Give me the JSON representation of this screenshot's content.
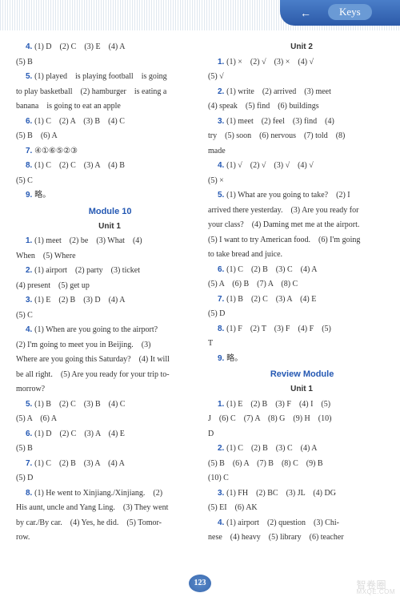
{
  "header": {
    "arrow": "←",
    "keys": "Keys"
  },
  "page_number": "123",
  "watermark": {
    "main": "智卷圈",
    "sub": "MXQE.COM"
  },
  "lines": [
    {
      "t": "ans",
      "n": "4.",
      "v": "(1) D　(2) C　(3) E　(4) A"
    },
    {
      "t": "cont",
      "v": "(5) B"
    },
    {
      "t": "ans",
      "n": "5.",
      "v": "(1) played　is playing football　is going"
    },
    {
      "t": "cont",
      "v": "to play basketball　(2) hamburger　is eating a"
    },
    {
      "t": "cont",
      "v": "banana　is going to eat an apple"
    },
    {
      "t": "ans",
      "n": "6.",
      "v": "(1) C　(2) A　(3) B　(4) C"
    },
    {
      "t": "cont",
      "v": "(5) B　(6) A"
    },
    {
      "t": "ans",
      "n": "7.",
      "v": "④①⑥⑤②③"
    },
    {
      "t": "ans",
      "n": "8.",
      "v": "(1) C　(2) C　(3) A　(4) B"
    },
    {
      "t": "cont",
      "v": "(5) C"
    },
    {
      "t": "ans",
      "n": "9.",
      "v": "略。"
    },
    {
      "t": "heading",
      "v": "Module 10"
    },
    {
      "t": "subheading",
      "v": "Unit 1"
    },
    {
      "t": "ans",
      "n": "1.",
      "v": "(1) meet　(2) be　(3) What　(4)"
    },
    {
      "t": "cont",
      "v": "When　(5) Where"
    },
    {
      "t": "ans",
      "n": "2.",
      "v": "(1) airport　(2) party　(3) ticket"
    },
    {
      "t": "cont",
      "v": "(4) present　(5) get up"
    },
    {
      "t": "ans",
      "n": "3.",
      "v": "(1) E　(2) B　(3) D　(4) A"
    },
    {
      "t": "cont",
      "v": "(5) C"
    },
    {
      "t": "ans",
      "n": "4.",
      "v": "(1) When are you going to the airport?"
    },
    {
      "t": "cont",
      "v": "(2) I'm going to meet you in Beijing.　(3)"
    },
    {
      "t": "cont",
      "v": "Where are you going this Saturday?　(4) It will"
    },
    {
      "t": "cont",
      "v": "be all right.　(5) Are you ready for your trip to-"
    },
    {
      "t": "cont",
      "v": "morrow?"
    },
    {
      "t": "ans",
      "n": "5.",
      "v": "(1) B　(2) C　(3) B　(4) C"
    },
    {
      "t": "cont",
      "v": "(5) A　(6) A"
    },
    {
      "t": "ans",
      "n": "6.",
      "v": "(1) D　(2) C　(3) A　(4) E"
    },
    {
      "t": "cont",
      "v": "(5) B"
    },
    {
      "t": "ans",
      "n": "7.",
      "v": "(1) C　(2) B　(3) A　(4) A"
    },
    {
      "t": "cont",
      "v": "(5) D"
    },
    {
      "t": "ans",
      "n": "8.",
      "v": "(1) He went to Xinjiang./Xinjiang.　(2)"
    },
    {
      "t": "cont",
      "v": "His aunt, uncle and Yang Ling.　(3) They went"
    },
    {
      "t": "cont",
      "v": "by car./By car.　(4) Yes, he did.　(5) Tomor-"
    },
    {
      "t": "cont",
      "v": "row."
    },
    {
      "t": "subheading",
      "v": "Unit 2"
    },
    {
      "t": "ans",
      "n": "1.",
      "v": "(1) ×　(2) √　(3) ×　(4) √"
    },
    {
      "t": "cont",
      "v": "(5) √"
    },
    {
      "t": "ans",
      "n": "2.",
      "v": "(1) write　(2) arrived　(3) meet"
    },
    {
      "t": "cont",
      "v": "(4) speak　(5) find　(6) buildings"
    },
    {
      "t": "ans",
      "n": "3.",
      "v": "(1) meet　(2) feel　(3) find　(4)"
    },
    {
      "t": "cont",
      "v": "try　(5) soon　(6) nervous　(7) told　(8)"
    },
    {
      "t": "cont",
      "v": "made"
    },
    {
      "t": "ans",
      "n": "4.",
      "v": "(1) √　(2) √　(3) √　(4) √"
    },
    {
      "t": "cont",
      "v": "(5) ×"
    },
    {
      "t": "ans",
      "n": "5.",
      "v": "(1) What are you going to take?　(2) I"
    },
    {
      "t": "cont",
      "v": "arrived there yesterday.　(3) Are you ready for"
    },
    {
      "t": "cont",
      "v": "your class?　(4) Daming met me at the airport."
    },
    {
      "t": "cont",
      "v": "(5) I want to try American food.　(6) I'm going"
    },
    {
      "t": "cont",
      "v": "to take bread and juice."
    },
    {
      "t": "ans",
      "n": "6.",
      "v": "(1) C　(2) B　(3) C　(4) A"
    },
    {
      "t": "cont",
      "v": "(5) A　(6) B　(7) A　(8) C"
    },
    {
      "t": "ans",
      "n": "7.",
      "v": "(1) B　(2) C　(3) A　(4) E"
    },
    {
      "t": "cont",
      "v": "(5) D"
    },
    {
      "t": "ans",
      "n": "8.",
      "v": "(1) F　(2) T　(3) F　(4) F　(5)"
    },
    {
      "t": "cont",
      "v": "T"
    },
    {
      "t": "ans",
      "n": "9.",
      "v": "略。"
    },
    {
      "t": "heading",
      "v": "Review Module"
    },
    {
      "t": "subheading",
      "v": "Unit 1"
    },
    {
      "t": "ans",
      "n": "1.",
      "v": "(1) E　(2) B　(3) F　(4) I　(5)"
    },
    {
      "t": "cont",
      "v": "J　(6) C　(7) A　(8) G　(9) H　(10)"
    },
    {
      "t": "cont",
      "v": "D"
    },
    {
      "t": "ans",
      "n": "2.",
      "v": "(1) C　(2) B　(3) C　(4) A"
    },
    {
      "t": "cont",
      "v": "(5) B　(6) A　(7) B　(8) C　(9) B"
    },
    {
      "t": "cont",
      "v": "(10) C"
    },
    {
      "t": "ans",
      "n": "3.",
      "v": "(1) FH　(2) BC　(3) JL　(4) DG"
    },
    {
      "t": "cont",
      "v": "(5) EI　(6) AK"
    },
    {
      "t": "ans",
      "n": "4.",
      "v": "(1) airport　(2) question　(3) Chi-"
    },
    {
      "t": "cont",
      "v": "nese　(4) heavy　(5) library　(6) teacher"
    }
  ]
}
